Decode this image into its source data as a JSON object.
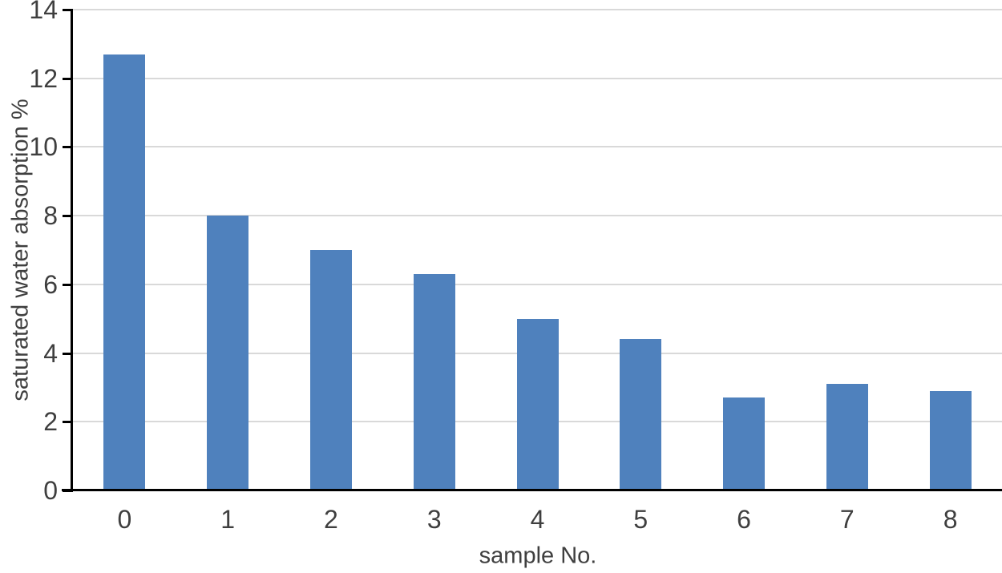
{
  "chart_data": {
    "type": "bar",
    "title": "",
    "xlabel": "sample No.",
    "ylabel": "saturated water absorption %",
    "categories": [
      "0",
      "1",
      "2",
      "3",
      "4",
      "5",
      "6",
      "7",
      "8"
    ],
    "values": [
      12.7,
      8.0,
      7.0,
      6.3,
      5.0,
      4.4,
      2.7,
      3.1,
      2.9
    ],
    "ylim": [
      0,
      14
    ],
    "ytick_step": 2,
    "yticks": [
      0,
      2,
      4,
      6,
      8,
      10,
      12,
      14
    ],
    "grid": true,
    "legend_position": "none",
    "bar_color": "#4f81bd",
    "gridline_color": "#d9d9d9",
    "axis_color": "#000000",
    "label_color": "#3f3f3f"
  }
}
